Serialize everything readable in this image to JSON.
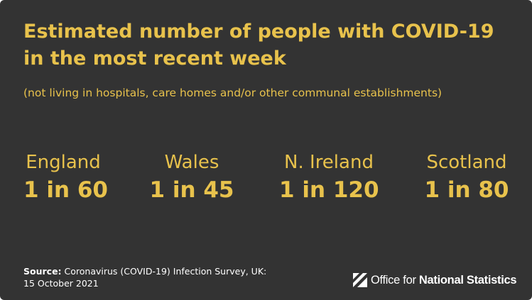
{
  "title": {
    "line1": "Estimated number of people with COVID-19",
    "line2": "in the most recent week"
  },
  "subtitle": "(not living in hospitals, care homes and/or other communal establishments)",
  "stats": [
    {
      "nation": "England",
      "ratio": "1 in 60"
    },
    {
      "nation": "Wales",
      "ratio": "1 in 45"
    },
    {
      "nation": "N. Ireland",
      "ratio": "1 in 120"
    },
    {
      "nation": "Scotland",
      "ratio": "1 in 80"
    }
  ],
  "source": {
    "label": "Source:",
    "line1": " Coronavirus (COVID-19) Infection Survey, UK:",
    "line2": "15 October 2021"
  },
  "logo": {
    "icon": "ons-logo-icon",
    "text_regular": "Office for ",
    "text_bold": "National Statistics"
  },
  "colors": {
    "background": "#333333",
    "accent": "#e8c24c",
    "text": "#ffffff"
  }
}
